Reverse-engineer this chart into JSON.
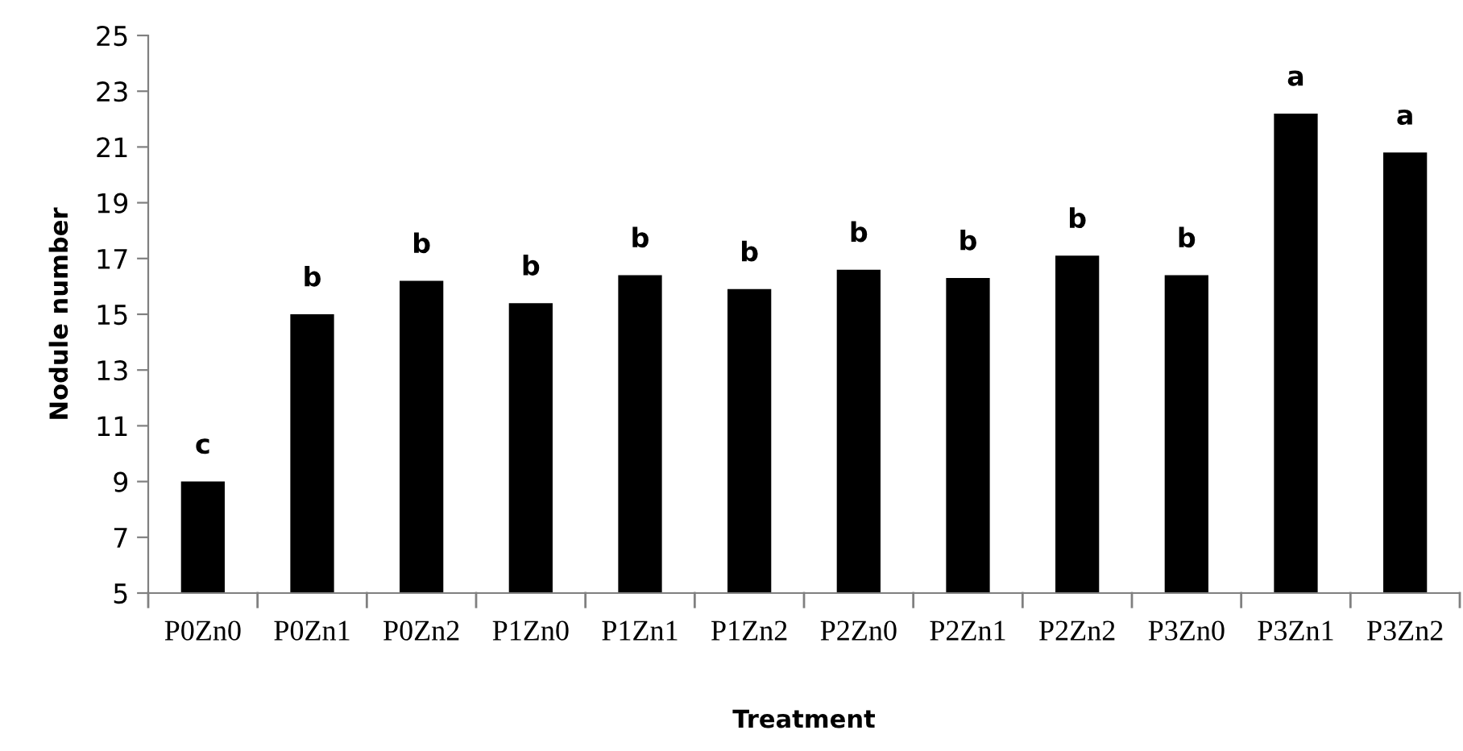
{
  "chart_data": {
    "type": "bar",
    "xlabel": "Treatment",
    "ylabel": "Nodule number",
    "categories": [
      "P0Zn0",
      "P0Zn1",
      "P0Zn2",
      "P1Zn0",
      "P1Zn1",
      "P1Zn2",
      "P2Zn0",
      "P2Zn1",
      "P2Zn2",
      "P3Zn0",
      "P3Zn1",
      "P3Zn2"
    ],
    "values": [
      9.0,
      15.0,
      16.2,
      15.4,
      16.4,
      15.9,
      16.6,
      16.3,
      17.1,
      16.4,
      22.2,
      20.8
    ],
    "color": "#000000",
    "ylim": [
      5,
      25
    ],
    "yticks": [
      5,
      7,
      9,
      11,
      13,
      15,
      17,
      19,
      21,
      23,
      25
    ],
    "grid": false,
    "annotations": [
      {
        "text": "c",
        "x": "P0Zn0",
        "y": 9.0
      },
      {
        "text": "b",
        "x": "P0Zn1",
        "y": 15.0
      },
      {
        "text": "b",
        "x": "P0Zn2",
        "y": 16.2
      },
      {
        "text": "b",
        "x": "P1Zn0",
        "y": 15.4
      },
      {
        "text": "b",
        "x": "P1Zn1",
        "y": 16.4
      },
      {
        "text": "b",
        "x": "P1Zn2",
        "y": 15.9
      },
      {
        "text": "b",
        "x": "P2Zn0",
        "y": 16.6
      },
      {
        "text": "b",
        "x": "P2Zn1",
        "y": 16.3
      },
      {
        "text": "b",
        "x": "P2Zn2",
        "y": 17.1
      },
      {
        "text": "b",
        "x": "P3Zn0",
        "y": 16.4
      },
      {
        "text": "a",
        "x": "P3Zn1",
        "y": 22.2
      },
      {
        "text": "a",
        "x": "P3Zn2",
        "y": 20.8
      }
    ]
  }
}
